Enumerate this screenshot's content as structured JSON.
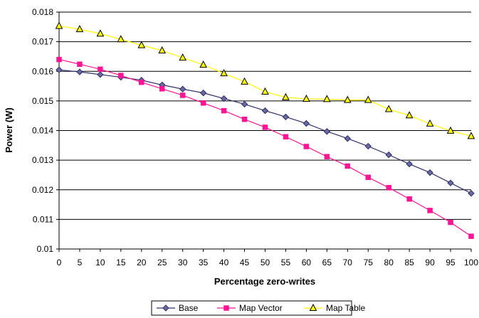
{
  "chart_data": {
    "type": "line",
    "title": "",
    "xlabel": "Percentage zero-writes",
    "ylabel": "Power (W)",
    "x": [
      0,
      5,
      10,
      15,
      20,
      25,
      30,
      35,
      40,
      45,
      50,
      55,
      60,
      65,
      70,
      75,
      80,
      85,
      90,
      95,
      100
    ],
    "xlim": [
      0,
      100
    ],
    "ylim": [
      0.01,
      0.018
    ],
    "xticks": [
      "0",
      "5",
      "10",
      "15",
      "20",
      "25",
      "30",
      "35",
      "40",
      "45",
      "50",
      "55",
      "60",
      "65",
      "70",
      "75",
      "80",
      "85",
      "90",
      "95",
      "100"
    ],
    "yticks": [
      "0.01",
      "0.011",
      "0.012",
      "0.013",
      "0.014",
      "0.015",
      "0.016",
      "0.017",
      "0.018"
    ],
    "grid": "horizontal",
    "legend_position": "bottom",
    "series": [
      {
        "name": "Base",
        "marker": "diamond",
        "line_color": "#2e2e6e",
        "marker_fill": "#6b6b9e",
        "values": [
          0.01605,
          0.01598,
          0.01589,
          0.0158,
          0.0157,
          0.01554,
          0.0154,
          0.01527,
          0.01508,
          0.01489,
          0.01467,
          0.01446,
          0.01424,
          0.01397,
          0.01373,
          0.01347,
          0.01318,
          0.01287,
          0.01258,
          0.01223,
          0.01188
        ]
      },
      {
        "name": "Map Vector",
        "marker": "square",
        "line_color": "#ff1493",
        "marker_fill": "#ff1493",
        "values": [
          0.0164,
          0.01624,
          0.01607,
          0.01586,
          0.01563,
          0.01541,
          0.01519,
          0.01493,
          0.01467,
          0.01438,
          0.01411,
          0.01379,
          0.01346,
          0.01312,
          0.0128,
          0.01242,
          0.01207,
          0.01169,
          0.0113,
          0.0109,
          0.01043
        ]
      },
      {
        "name": "Map Table",
        "marker": "triangle",
        "line_color": "#ffff00",
        "marker_fill": "#ffff00",
        "values": [
          0.01753,
          0.01742,
          0.01727,
          0.01708,
          0.01688,
          0.0167,
          0.01646,
          0.01622,
          0.01593,
          0.01565,
          0.01531,
          0.01512,
          0.01507,
          0.01506,
          0.01503,
          0.01503,
          0.01472,
          0.01451,
          0.01423,
          0.01399,
          0.01381
        ]
      }
    ]
  }
}
